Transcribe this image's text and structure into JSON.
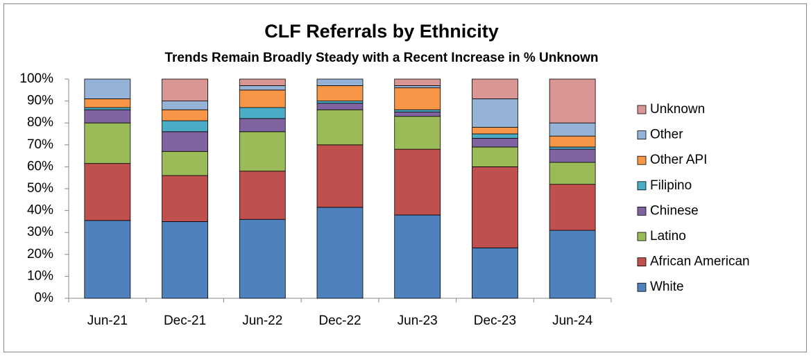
{
  "chart_data": {
    "type": "stacked_bar",
    "title": "CLF Referrals by Ethnicity",
    "subtitle": "Trends Remain Broadly Steady with a Recent Increase in % Unknown",
    "categories": [
      "Jun-21",
      "Dec-21",
      "Jun-22",
      "Dec-22",
      "Jun-23",
      "Dec-23",
      "Jun-24"
    ],
    "series": [
      {
        "name": "White",
        "color": "#4f81bd",
        "values": [
          35.5,
          35,
          36,
          41.5,
          38,
          23,
          31
        ]
      },
      {
        "name": "African American",
        "color": "#c0504d",
        "values": [
          26,
          21,
          22,
          28.5,
          30,
          37,
          21
        ]
      },
      {
        "name": "Latino",
        "color": "#9bbb59",
        "values": [
          18.5,
          11,
          18,
          16,
          15,
          9,
          10
        ]
      },
      {
        "name": "Chinese",
        "color": "#8064a2",
        "values": [
          6,
          9,
          6,
          3,
          2,
          4,
          6
        ]
      },
      {
        "name": "Filipino",
        "color": "#4bacc6",
        "values": [
          1,
          5,
          5,
          1,
          1,
          2,
          1
        ]
      },
      {
        "name": "Other API",
        "color": "#f79646",
        "values": [
          4,
          5,
          8,
          7,
          10,
          3,
          5
        ]
      },
      {
        "name": "Other",
        "color": "#95b3d7",
        "values": [
          9,
          4,
          2,
          3,
          1,
          13,
          6
        ]
      },
      {
        "name": "Unknown",
        "color": "#d99694",
        "values": [
          0,
          10,
          3,
          0,
          3,
          9,
          20
        ]
      }
    ],
    "ylim": [
      0,
      100
    ],
    "yticks": [
      {
        "value": 0,
        "label": "0%"
      },
      {
        "value": 10,
        "label": "10%"
      },
      {
        "value": 20,
        "label": "20%"
      },
      {
        "value": 30,
        "label": "30%"
      },
      {
        "value": 40,
        "label": "40%"
      },
      {
        "value": 50,
        "label": "50%"
      },
      {
        "value": 60,
        "label": "60%"
      },
      {
        "value": 70,
        "label": "70%"
      },
      {
        "value": 80,
        "label": "80%"
      },
      {
        "value": 90,
        "label": "90%"
      },
      {
        "value": 100,
        "label": "100%"
      }
    ],
    "legend": "right"
  }
}
